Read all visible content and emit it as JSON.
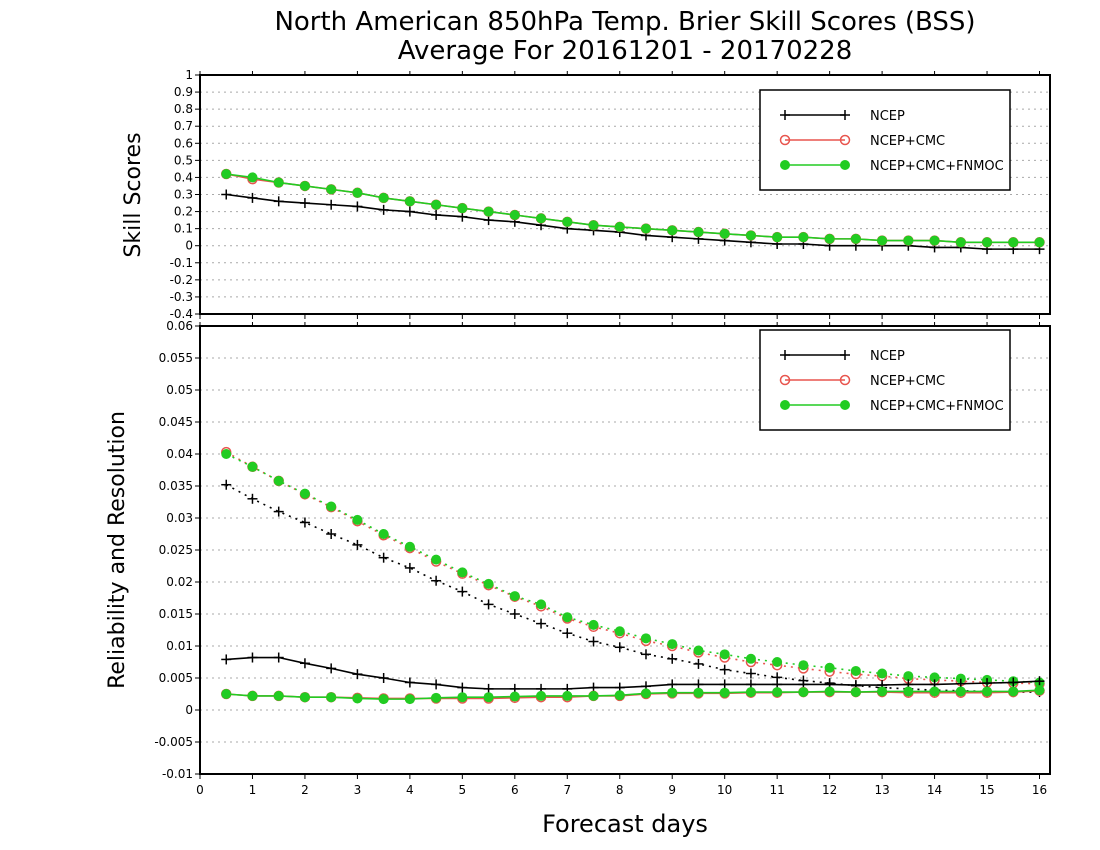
{
  "title_line1": "North American 850hPa Temp. Brier Skill Scores (BSS)",
  "title_line2": "Average For 20161201 - 20170228",
  "x_axis_label": "Forecast days",
  "colors": {
    "NCEP": "#000000",
    "NCEP+CMC": "#e8554e",
    "NCEP+CMC+FNMOC": "#22cc22",
    "grid": "#a9a9a9"
  },
  "chart_data": [
    {
      "type": "line",
      "ylabel": "Skill Scores",
      "xlim": [
        0,
        16.2
      ],
      "ylim": [
        -0.4,
        1
      ],
      "x_ticks": [
        0,
        1,
        2,
        3,
        4,
        5,
        6,
        7,
        8,
        9,
        10,
        11,
        12,
        13,
        14,
        15,
        16
      ],
      "y_ticks": [
        -0.4,
        -0.3,
        -0.2,
        -0.1,
        0,
        0.1,
        0.2,
        0.3,
        0.4,
        0.5,
        0.6,
        0.7,
        0.8,
        0.9,
        1
      ],
      "y_tick_labels": [
        "-0.4",
        "-0.3",
        "-0.2",
        "-0.1",
        "0",
        "0.1",
        "0.2",
        "0.3",
        "0.4",
        "0.5",
        "0.6",
        "0.7",
        "0.8",
        "0.9",
        "1"
      ],
      "grid": "dotted horizontal",
      "legend_position": "top-right",
      "x": [
        0.5,
        1,
        1.5,
        2,
        2.5,
        3,
        3.5,
        4,
        4.5,
        5,
        5.5,
        6,
        6.5,
        7,
        7.5,
        8,
        8.5,
        9,
        9.5,
        10,
        10.5,
        11,
        11.5,
        12,
        12.5,
        13,
        13.5,
        14,
        14.5,
        15,
        15.5,
        16
      ],
      "series": [
        {
          "name": "NCEP",
          "marker": "plus",
          "style": "solid",
          "values": [
            0.3,
            0.28,
            0.26,
            0.25,
            0.24,
            0.23,
            0.21,
            0.2,
            0.18,
            0.17,
            0.15,
            0.14,
            0.12,
            0.1,
            0.09,
            0.08,
            0.06,
            0.05,
            0.04,
            0.03,
            0.02,
            0.01,
            0.01,
            0.0,
            0.0,
            0.0,
            0.0,
            -0.01,
            -0.01,
            -0.02,
            -0.02,
            -0.02
          ]
        },
        {
          "name": "NCEP+CMC",
          "marker": "open-circle",
          "style": "solid",
          "values": [
            0.42,
            0.39,
            0.37,
            0.35,
            0.33,
            0.31,
            0.28,
            0.26,
            0.24,
            0.22,
            0.2,
            0.18,
            0.16,
            0.14,
            0.12,
            0.11,
            0.1,
            0.09,
            0.08,
            0.07,
            0.06,
            0.05,
            0.05,
            0.04,
            0.04,
            0.03,
            0.03,
            0.03,
            0.02,
            0.02,
            0.02,
            0.02
          ]
        },
        {
          "name": "NCEP+CMC+FNMOC",
          "marker": "filled-circle",
          "style": "solid",
          "values": [
            0.42,
            0.4,
            0.37,
            0.35,
            0.33,
            0.31,
            0.28,
            0.26,
            0.24,
            0.22,
            0.2,
            0.18,
            0.16,
            0.14,
            0.12,
            0.11,
            0.1,
            0.09,
            0.08,
            0.07,
            0.06,
            0.05,
            0.05,
            0.04,
            0.04,
            0.03,
            0.03,
            0.03,
            0.02,
            0.02,
            0.02,
            0.02
          ]
        }
      ]
    },
    {
      "type": "line",
      "ylabel": "Reliability and Resolution",
      "xlim": [
        0,
        16.2
      ],
      "ylim": [
        -0.01,
        0.06
      ],
      "x_ticks": [
        0,
        1,
        2,
        3,
        4,
        5,
        6,
        7,
        8,
        9,
        10,
        11,
        12,
        13,
        14,
        15,
        16
      ],
      "x_tick_labels": [
        "0",
        "1",
        "2",
        "3",
        "4",
        "5",
        "6",
        "7",
        "8",
        "9",
        "10",
        "11",
        "12",
        "13",
        "14",
        "15",
        "16"
      ],
      "y_ticks": [
        -0.01,
        -0.005,
        0,
        0.005,
        0.01,
        0.015,
        0.02,
        0.025,
        0.03,
        0.035,
        0.04,
        0.045,
        0.05,
        0.055,
        0.06
      ],
      "y_tick_labels": [
        "-0.01",
        "-0.005",
        "0",
        "0.005",
        "0.01",
        "0.015",
        "0.02",
        "0.025",
        "0.03",
        "0.035",
        "0.04",
        "0.045",
        "0.05",
        "0.055",
        "0.06"
      ],
      "grid": "dotted horizontal",
      "legend_position": "top-right",
      "x": [
        0.5,
        1,
        1.5,
        2,
        2.5,
        3,
        3.5,
        4,
        4.5,
        5,
        5.5,
        6,
        6.5,
        7,
        7.5,
        8,
        8.5,
        9,
        9.5,
        10,
        10.5,
        11,
        11.5,
        12,
        12.5,
        13,
        13.5,
        14,
        14.5,
        15,
        15.5,
        16
      ],
      "series": [
        {
          "name": "NCEP",
          "metric": "resolution",
          "marker": "plus",
          "style": "dotted",
          "values": [
            0.0352,
            0.033,
            0.031,
            0.0293,
            0.0275,
            0.0258,
            0.0238,
            0.0222,
            0.0202,
            0.0185,
            0.0165,
            0.015,
            0.0135,
            0.012,
            0.0107,
            0.0098,
            0.0087,
            0.008,
            0.0072,
            0.0063,
            0.0057,
            0.0051,
            0.0046,
            0.0042,
            0.0038,
            0.0035,
            0.0033,
            0.0031,
            0.003,
            0.0029,
            0.0028,
            0.0028
          ]
        },
        {
          "name": "NCEP+CMC",
          "metric": "resolution",
          "marker": "open-circle",
          "style": "dotted",
          "values": [
            0.0403,
            0.038,
            0.0358,
            0.0337,
            0.0317,
            0.0295,
            0.0273,
            0.0253,
            0.0232,
            0.0213,
            0.0195,
            0.0177,
            0.0162,
            0.0143,
            0.013,
            0.012,
            0.0108,
            0.01,
            0.009,
            0.0082,
            0.0075,
            0.007,
            0.0065,
            0.006,
            0.0056,
            0.0053,
            0.0049,
            0.0047,
            0.0045,
            0.0043,
            0.0042,
            0.0041
          ]
        },
        {
          "name": "NCEP+CMC+FNMOC",
          "metric": "resolution",
          "marker": "filled-circle",
          "style": "dotted",
          "values": [
            0.04,
            0.038,
            0.0358,
            0.0338,
            0.0318,
            0.0297,
            0.0275,
            0.0255,
            0.0235,
            0.0215,
            0.0197,
            0.0178,
            0.0165,
            0.0145,
            0.0133,
            0.0123,
            0.0112,
            0.0103,
            0.0093,
            0.0087,
            0.008,
            0.0075,
            0.007,
            0.0066,
            0.0061,
            0.0057,
            0.0053,
            0.0051,
            0.0049,
            0.0047,
            0.0045,
            0.0043
          ]
        },
        {
          "name": "NCEP",
          "metric": "reliability",
          "marker": "plus",
          "style": "solid",
          "values": [
            0.0079,
            0.0082,
            0.0082,
            0.0073,
            0.0065,
            0.0056,
            0.005,
            0.0043,
            0.004,
            0.0035,
            0.0033,
            0.0033,
            0.0033,
            0.0033,
            0.0035,
            0.0035,
            0.0037,
            0.004,
            0.004,
            0.004,
            0.004,
            0.004,
            0.004,
            0.004,
            0.0039,
            0.0039,
            0.004,
            0.004,
            0.0041,
            0.0042,
            0.0043,
            0.0045
          ]
        },
        {
          "name": "NCEP+CMC",
          "metric": "reliability",
          "marker": "open-circle",
          "style": "solid",
          "values": [
            0.0025,
            0.0022,
            0.0022,
            0.002,
            0.002,
            0.0019,
            0.0018,
            0.0018,
            0.0018,
            0.0018,
            0.0018,
            0.0019,
            0.002,
            0.002,
            0.0022,
            0.0022,
            0.0025,
            0.0026,
            0.0026,
            0.0026,
            0.0027,
            0.0027,
            0.0028,
            0.0028,
            0.0028,
            0.0028,
            0.0027,
            0.0027,
            0.0027,
            0.0027,
            0.0028,
            0.003
          ]
        },
        {
          "name": "NCEP+CMC+FNMOC",
          "metric": "reliability",
          "marker": "filled-circle",
          "style": "solid",
          "values": [
            0.0025,
            0.0022,
            0.0022,
            0.002,
            0.002,
            0.0018,
            0.0017,
            0.0017,
            0.0019,
            0.002,
            0.002,
            0.0021,
            0.0022,
            0.0022,
            0.0022,
            0.0023,
            0.0026,
            0.0027,
            0.0027,
            0.0027,
            0.0028,
            0.0028,
            0.0028,
            0.0029,
            0.0028,
            0.0029,
            0.0029,
            0.0029,
            0.0029,
            0.0029,
            0.0029,
            0.0031
          ]
        }
      ]
    }
  ],
  "legend": {
    "entries": [
      "NCEP",
      "NCEP+CMC",
      "NCEP+CMC+FNMOC"
    ],
    "markers": [
      "plus",
      "open-circle",
      "filled-circle"
    ]
  }
}
